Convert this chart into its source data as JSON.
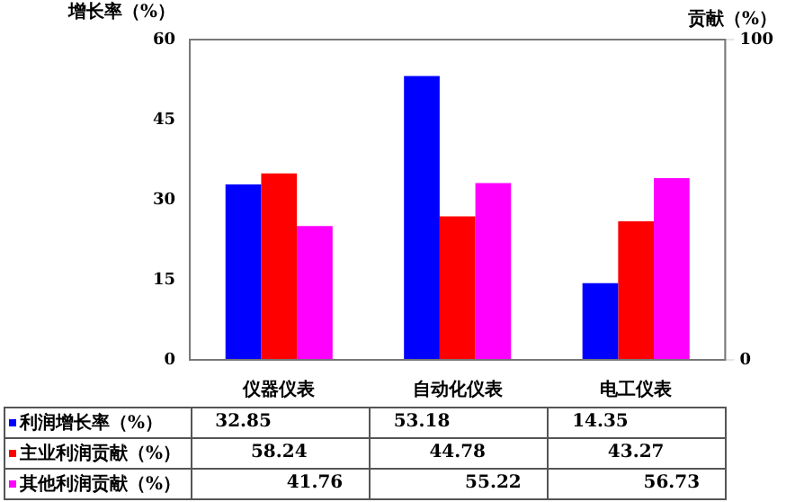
{
  "chart_data": {
    "type": "bar",
    "ylabel": "增长率（%）",
    "y2label": "贡献（%）",
    "categories": [
      "仪器仪表",
      "自动化仪表",
      "电工仪表"
    ],
    "series": [
      {
        "name": "利润增长率（%）",
        "color": "#0000ff",
        "values": [
          32.85,
          53.18,
          14.35
        ]
      },
      {
        "name": "主业利润贡献（%）",
        "color": "#ff0000",
        "values": [
          58.24,
          44.78,
          43.27
        ],
        "axis": "y2"
      },
      {
        "name": "其他利润贡献（%）",
        "color": "#ff00ff",
        "values": [
          41.76,
          55.22,
          56.73
        ],
        "axis": "y2"
      }
    ],
    "ylim": [
      0,
      60
    ],
    "yticks": [
      0,
      15,
      30,
      45,
      60
    ],
    "y2lim": [
      0,
      100
    ],
    "y2ticks": [
      0,
      100
    ],
    "data_labels": true,
    "legend": "bottom"
  }
}
